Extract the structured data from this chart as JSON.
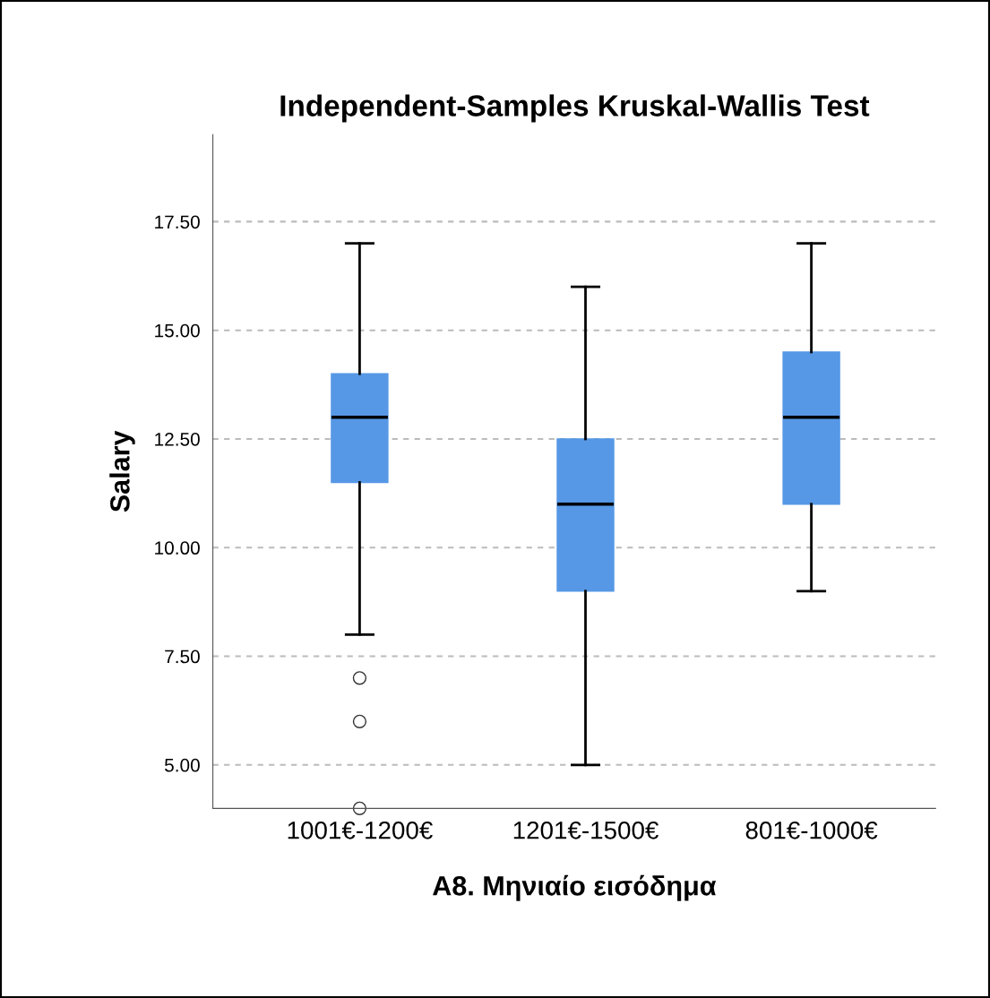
{
  "chart_data": {
    "type": "box",
    "title": "Independent-Samples Kruskal-Wallis Test",
    "xlabel": "A8. Μηνιαίο εισόδημα",
    "ylabel": "Salary",
    "categories": [
      "1001€-1200€",
      "1201€-1500€",
      "801€-1000€"
    ],
    "boxes": [
      {
        "low": 8,
        "q1": 11.5,
        "median": 13,
        "q3": 14,
        "high": 17,
        "outliers": [
          7,
          6,
          4
        ]
      },
      {
        "low": 5,
        "q1": 9,
        "median": 11,
        "q3": 12.5,
        "high": 16
      },
      {
        "low": 9,
        "q1": 11,
        "median": 13,
        "q3": 14.5,
        "high": 17
      }
    ],
    "color": "#5698e6",
    "ylim": [
      4,
      19.5
    ],
    "yticks": [
      {
        "value": 5,
        "label": "5.00"
      },
      {
        "value": 7.5,
        "label": "7.50"
      },
      {
        "value": 10,
        "label": "10.00"
      },
      {
        "value": 12.5,
        "label": "12.50"
      },
      {
        "value": 15,
        "label": "15.00"
      },
      {
        "value": 17.5,
        "label": "17.50"
      }
    ],
    "grid": "y"
  }
}
